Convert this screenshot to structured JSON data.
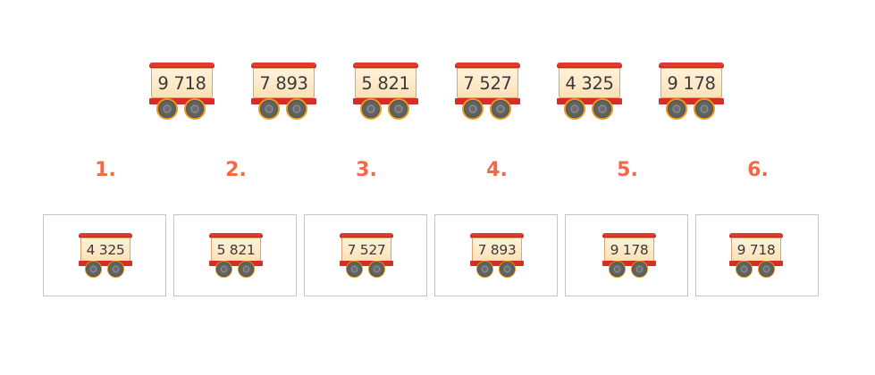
{
  "source_wagons": [
    "9 718",
    "7 893",
    "5 821",
    "7 527",
    "4 325",
    "9 178"
  ],
  "position_labels": [
    "1.",
    "2.",
    "3.",
    "4.",
    "5.",
    "6."
  ],
  "slot_wagons": [
    "4 325",
    "5 821",
    "7 527",
    "7 893",
    "9 178",
    "9 718"
  ],
  "colors": {
    "roof": "#e03a32",
    "wagon_body": "#fde1b6",
    "wheel_rim": "#e69a1a",
    "label": "#f26a45",
    "slot_border": "#c4c4c4"
  },
  "icons": [
    "wagon-icon",
    "wheel-icon"
  ]
}
